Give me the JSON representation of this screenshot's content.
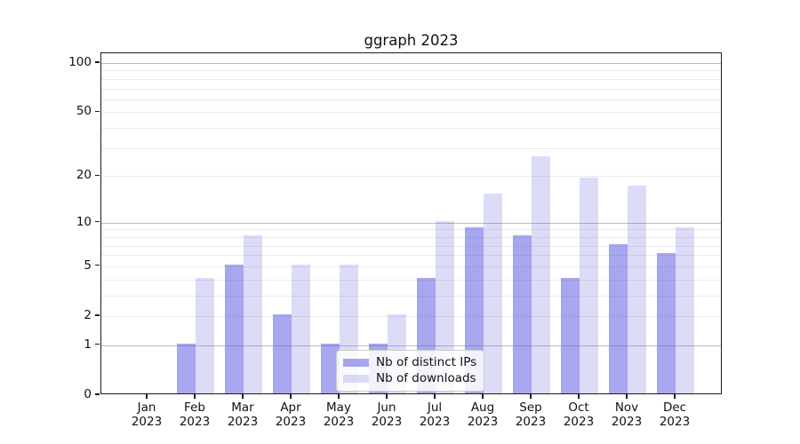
{
  "chart_data": {
    "type": "bar",
    "title": "ggraph 2023",
    "categories": [
      "Jan",
      "Feb",
      "Mar",
      "Apr",
      "May",
      "Jun",
      "Jul",
      "Aug",
      "Sep",
      "Oct",
      "Nov",
      "Dec"
    ],
    "year_label": "2023",
    "series": [
      {
        "name": "Nb of distinct IPs",
        "color": "#5050e0",
        "alpha": 0.5,
        "values": [
          0,
          1,
          5,
          2,
          1,
          1,
          4,
          9,
          8,
          4,
          7,
          6
        ]
      },
      {
        "name": "Nb of downloads",
        "color": "#5050e0",
        "alpha": 0.2,
        "values": [
          0,
          4,
          8,
          5,
          5,
          2,
          10,
          15,
          26,
          19,
          17,
          9
        ]
      }
    ],
    "yscale": "log1p",
    "ylim": [
      0,
      115
    ],
    "ytick_labels": [
      0,
      1,
      2,
      5,
      10,
      20,
      50,
      100
    ],
    "major_gridlines": [
      1,
      10,
      100
    ],
    "minor_gridlines": [
      2,
      3,
      4,
      5,
      6,
      7,
      8,
      9,
      20,
      30,
      40,
      50,
      60,
      70,
      80,
      90
    ],
    "grid": true,
    "legend_position": "lower center",
    "colors": {
      "major_grid": "#bdbdbd",
      "minor_grid": "#eaeaea",
      "spine": "#1a1a1a",
      "text": "#111111",
      "legend_border": "#cccccc"
    }
  }
}
